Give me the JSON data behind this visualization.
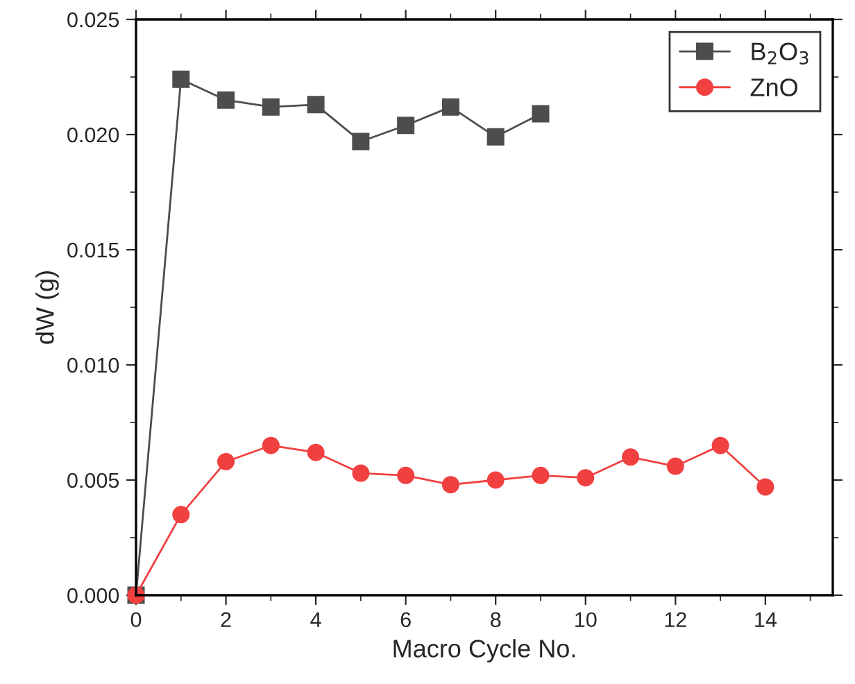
{
  "chart_data": {
    "type": "line",
    "xlabel": "Macro Cycle No.",
    "ylabel": "dW (g)",
    "xlim": [
      0,
      15.5
    ],
    "xticks": [
      0,
      2,
      4,
      6,
      8,
      10,
      12,
      14
    ],
    "ylim": [
      0,
      0.025
    ],
    "yticks": [
      {
        "value": 0,
        "label": "0.000"
      },
      {
        "value": 0.005,
        "label": "0.005"
      },
      {
        "value": 0.01,
        "label": "0.010"
      },
      {
        "value": 0.015,
        "label": "0.015"
      },
      {
        "value": 0.02,
        "label": "0.020"
      },
      {
        "value": 0.025,
        "label": "0.025"
      }
    ],
    "grid": false,
    "legend": "top right",
    "series": [
      {
        "name": "B$_{2}$O$_{3}$",
        "color": "#4d4d4d",
        "marker": "square",
        "x": [
          0,
          1,
          2,
          3,
          4,
          5,
          6,
          7,
          8,
          9
        ],
        "values": [
          0,
          0.0224,
          0.0215,
          0.0212,
          0.0213,
          0.0197,
          0.0204,
          0.0212,
          0.0199,
          0.0209
        ]
      },
      {
        "name": "ZnO",
        "color": "#f04040",
        "marker": "circle",
        "x": [
          0,
          1,
          2,
          3,
          4,
          5,
          6,
          7,
          8,
          9,
          10,
          11,
          12,
          13,
          14
        ],
        "values": [
          0,
          0.0035,
          0.0058,
          0.0065,
          0.0062,
          0.0053,
          0.0052,
          0.0048,
          0.005,
          0.0052,
          0.0051,
          0.006,
          0.0056,
          0.0065,
          0.0047
        ]
      }
    ]
  }
}
